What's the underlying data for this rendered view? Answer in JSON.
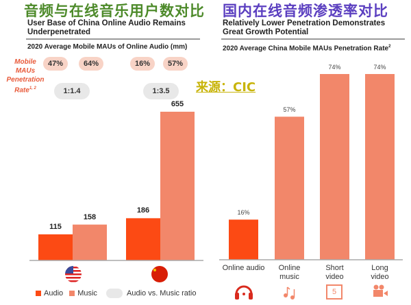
{
  "titles": {
    "left_cn": "音频与在线音乐用户数对比",
    "right_cn": "国内在线音频渗透率对比",
    "source": "来源：CIC"
  },
  "colors": {
    "audio": "#fc4a14",
    "music": "#f2876a",
    "ratio_pill": "#e8e8e8",
    "pen_pill": "#f8d3c6",
    "left_title": "#4d8a2a",
    "right_title": "#5b3fc0",
    "source": "#c8b40a"
  },
  "chart_data": [
    {
      "type": "bar",
      "title": "User Base of China Online Audio Remains Underpenetrated",
      "subtitle": "2020 Average Mobile MAUs of Online Audio (mm)",
      "categories": [
        "United States",
        "China"
      ],
      "category_icons": [
        "us-flag-icon",
        "china-flag-icon"
      ],
      "series": [
        {
          "name": "Audio",
          "values": [
            115,
            186
          ]
        },
        {
          "name": "Music",
          "values": [
            158,
            655
          ]
        }
      ],
      "penetration_label": "Mobile MAUs Penetration Rate",
      "penetration_label_sup": "1, 2",
      "penetration_rates": [
        [
          "47%",
          "64%"
        ],
        [
          "16%",
          "57%"
        ]
      ],
      "ratio_legend": "Audio vs. Music ratio",
      "ratios": [
        "1:1.4",
        "1:3.5"
      ],
      "ylim": [
        0,
        700
      ]
    },
    {
      "type": "bar",
      "title": "Relatively Lower Penetration Demonstrates Great Growth Potential",
      "subtitle": "2020 Average China Mobile MAUs Penetration Rate",
      "subtitle_sup": "2",
      "categories": [
        "Online audio",
        "Online music",
        "Short video",
        "Long video"
      ],
      "category_lines": [
        [
          "Online audio"
        ],
        [
          "Online",
          "music"
        ],
        [
          "Short",
          "video"
        ],
        [
          "Long",
          "video"
        ]
      ],
      "category_icons": [
        "headphones-icon",
        "music-notes-icon",
        "short-video-icon",
        "video-camera-icon"
      ],
      "values": [
        16,
        57,
        74,
        74
      ],
      "labels": [
        "16%",
        "57%",
        "74%",
        "74%"
      ],
      "ylim": [
        0,
        80
      ]
    }
  ]
}
